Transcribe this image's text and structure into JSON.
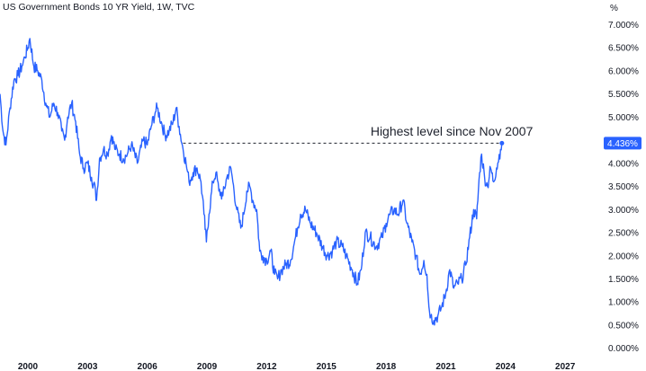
{
  "chart_data": {
    "type": "line",
    "title": "US Government Bonds 10 YR Yield, 1W, TVC",
    "unit_label": "%",
    "xlabel": "",
    "ylabel": "",
    "xlim": [
      1998.6,
      2028.8
    ],
    "ylim": [
      -0.2,
      7.3
    ],
    "x_ticks": [
      2000,
      2003,
      2006,
      2009,
      2012,
      2015,
      2018,
      2021,
      2024,
      2027
    ],
    "x_tick_labels": [
      "2000",
      "2003",
      "2006",
      "2009",
      "2012",
      "2015",
      "2018",
      "2021",
      "2024",
      "2027"
    ],
    "y_ticks": [
      0,
      0.5,
      1,
      1.5,
      2,
      2.5,
      3,
      3.5,
      4,
      4.5,
      5,
      5.5,
      6,
      6.5,
      7
    ],
    "y_tick_labels": [
      "0.000%",
      "0.500%",
      "1.000%",
      "1.500%",
      "2.000%",
      "2.500%",
      "3.000%",
      "3.500%",
      "4.000%",
      "4.500%",
      "5.000%",
      "5.500%",
      "6.000%",
      "6.500%",
      "7.000%"
    ],
    "grid": false,
    "series": [
      {
        "color": "#2962ff",
        "x": [
          1998.6,
          1998.75,
          1998.9,
          1999.1,
          1999.3,
          1999.5,
          1999.7,
          1999.85,
          2000.0,
          2000.1,
          2000.3,
          2000.5,
          2000.7,
          2000.9,
          2001.1,
          2001.3,
          2001.5,
          2001.7,
          2001.85,
          2002.0,
          2002.2,
          2002.4,
          2002.6,
          2002.8,
          2003.0,
          2003.2,
          2003.4,
          2003.45,
          2003.6,
          2003.8,
          2004.0,
          2004.2,
          2004.4,
          2004.6,
          2004.8,
          2005.0,
          2005.2,
          2005.5,
          2005.8,
          2006.0,
          2006.2,
          2006.4,
          2006.5,
          2006.7,
          2006.9,
          2007.1,
          2007.3,
          2007.45,
          2007.6,
          2007.8,
          2007.95,
          2008.1,
          2008.3,
          2008.5,
          2008.7,
          2008.85,
          2008.97,
          2009.1,
          2009.3,
          2009.45,
          2009.6,
          2009.8,
          2010.0,
          2010.2,
          2010.3,
          2010.5,
          2010.7,
          2010.85,
          2011.0,
          2011.15,
          2011.3,
          2011.5,
          2011.65,
          2011.8,
          2012.0,
          2012.2,
          2012.4,
          2012.55,
          2012.75,
          2012.95,
          2013.2,
          2013.35,
          2013.55,
          2013.7,
          2013.95,
          2014.2,
          2014.5,
          2014.8,
          2015.05,
          2015.3,
          2015.5,
          2015.8,
          2016.0,
          2016.3,
          2016.55,
          2016.75,
          2016.95,
          2017.2,
          2017.5,
          2017.8,
          2018.0,
          2018.2,
          2018.4,
          2018.6,
          2018.85,
          2019.05,
          2019.3,
          2019.5,
          2019.7,
          2019.9,
          2020.05,
          2020.15,
          2020.25,
          2020.4,
          2020.6,
          2020.8,
          2021.0,
          2021.2,
          2021.4,
          2021.6,
          2021.8,
          2022.0,
          2022.2,
          2022.4,
          2022.55,
          2022.7,
          2022.8,
          2022.95,
          2023.1,
          2023.25,
          2023.4,
          2023.55,
          2023.75,
          2023.82
        ],
        "y": [
          5.5,
          4.7,
          4.4,
          5.2,
          5.8,
          5.9,
          6.1,
          6.3,
          6.5,
          6.7,
          6.1,
          6.0,
          5.8,
          5.3,
          5.0,
          5.3,
          5.1,
          4.7,
          4.5,
          5.0,
          5.3,
          4.9,
          4.2,
          3.9,
          4.0,
          3.7,
          3.4,
          3.2,
          4.1,
          4.3,
          4.2,
          4.6,
          4.3,
          4.2,
          4.1,
          4.2,
          4.4,
          4.0,
          4.5,
          4.4,
          4.8,
          5.1,
          5.2,
          4.9,
          4.6,
          4.7,
          4.9,
          5.2,
          4.8,
          4.3,
          4.0,
          3.6,
          3.8,
          3.9,
          3.6,
          2.9,
          2.3,
          2.9,
          3.6,
          3.8,
          3.4,
          3.3,
          3.7,
          3.9,
          3.6,
          3.0,
          2.6,
          2.9,
          3.4,
          3.5,
          3.2,
          3.0,
          2.1,
          2.0,
          1.9,
          2.1,
          1.6,
          1.5,
          1.7,
          1.8,
          1.9,
          2.2,
          2.6,
          2.9,
          3.0,
          2.7,
          2.5,
          2.2,
          2.0,
          2.1,
          2.3,
          2.2,
          2.0,
          1.7,
          1.4,
          1.7,
          2.5,
          2.4,
          2.2,
          2.4,
          2.7,
          2.9,
          3.0,
          2.9,
          3.2,
          2.7,
          2.3,
          2.0,
          1.6,
          1.9,
          1.6,
          0.9,
          0.7,
          0.6,
          0.7,
          0.9,
          1.2,
          1.7,
          1.3,
          1.4,
          1.5,
          1.8,
          2.4,
          3.0,
          2.8,
          3.8,
          4.2,
          3.7,
          3.5,
          3.9,
          3.6,
          3.9,
          4.3,
          4.436
        ]
      }
    ],
    "reference_line": {
      "y": 4.436,
      "x_start": 2007.8,
      "x_end": 2023.82,
      "style": "dashed"
    },
    "annotations": [
      {
        "text": "Highest level since Nov 2007",
        "x": 2021.3,
        "y": 4.6
      }
    ],
    "last_value": {
      "value": 4.436,
      "label": "4.436%",
      "color": "#2962ff"
    }
  }
}
